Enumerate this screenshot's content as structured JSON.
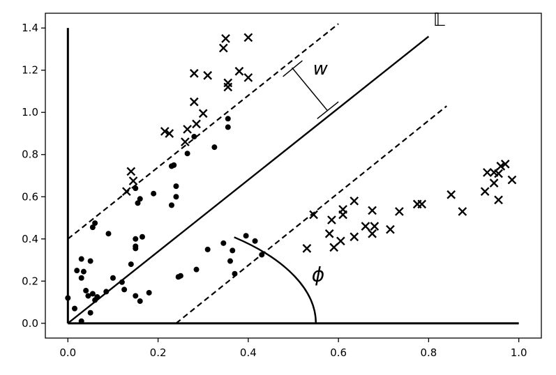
{
  "chart_data": {
    "type": "scatter",
    "xlim": [
      -0.05,
      1.05
    ],
    "ylim": [
      -0.07,
      1.47
    ],
    "xticks": [
      0.0,
      0.2,
      0.4,
      0.6,
      0.8,
      1.0
    ],
    "xtick_labels": [
      "0.0",
      "0.2",
      "0.4",
      "0.6",
      "0.8",
      "1.0"
    ],
    "yticks": [
      0.0,
      0.2,
      0.4,
      0.6,
      0.8,
      1.0,
      1.2,
      1.4
    ],
    "ytick_labels": [
      "0.0",
      "0.2",
      "0.4",
      "0.6",
      "0.8",
      "1.0",
      "1.2",
      "1.4"
    ],
    "grid": false,
    "series": [
      {
        "marker": "x",
        "color": "#000000",
        "points": [
          [
            0.35,
            1.35
          ],
          [
            0.4,
            1.355
          ],
          [
            0.345,
            1.305
          ],
          [
            0.28,
            1.185
          ],
          [
            0.31,
            1.175
          ],
          [
            0.38,
            1.195
          ],
          [
            0.4,
            1.165
          ],
          [
            0.355,
            1.14
          ],
          [
            0.355,
            1.12
          ],
          [
            0.28,
            1.05
          ],
          [
            0.3,
            0.995
          ],
          [
            0.285,
            0.945
          ],
          [
            0.265,
            0.92
          ],
          [
            0.215,
            0.91
          ],
          [
            0.225,
            0.9
          ],
          [
            0.26,
            0.86
          ],
          [
            0.14,
            0.72
          ],
          [
            0.145,
            0.675
          ],
          [
            0.13,
            0.625
          ],
          [
            0.97,
            0.755
          ],
          [
            0.96,
            0.745
          ],
          [
            0.93,
            0.715
          ],
          [
            0.945,
            0.715
          ],
          [
            0.955,
            0.71
          ],
          [
            0.945,
            0.665
          ],
          [
            0.925,
            0.625
          ],
          [
            0.985,
            0.68
          ],
          [
            0.85,
            0.61
          ],
          [
            0.955,
            0.585
          ],
          [
            0.635,
            0.58
          ],
          [
            0.775,
            0.565
          ],
          [
            0.785,
            0.565
          ],
          [
            0.61,
            0.54
          ],
          [
            0.675,
            0.535
          ],
          [
            0.735,
            0.53
          ],
          [
            0.875,
            0.53
          ],
          [
            0.545,
            0.515
          ],
          [
            0.61,
            0.515
          ],
          [
            0.585,
            0.49
          ],
          [
            0.66,
            0.46
          ],
          [
            0.68,
            0.46
          ],
          [
            0.715,
            0.445
          ],
          [
            0.675,
            0.425
          ],
          [
            0.58,
            0.425
          ],
          [
            0.635,
            0.41
          ],
          [
            0.605,
            0.39
          ],
          [
            0.59,
            0.36
          ],
          [
            0.53,
            0.355
          ]
        ]
      },
      {
        "marker": "o",
        "color": "#000000",
        "points": [
          [
            0.355,
            0.97
          ],
          [
            0.355,
            0.93
          ],
          [
            0.28,
            0.885
          ],
          [
            0.325,
            0.835
          ],
          [
            0.265,
            0.805
          ],
          [
            0.235,
            0.75
          ],
          [
            0.23,
            0.745
          ],
          [
            0.24,
            0.65
          ],
          [
            0.15,
            0.64
          ],
          [
            0.19,
            0.615
          ],
          [
            0.24,
            0.6
          ],
          [
            0.16,
            0.59
          ],
          [
            0.155,
            0.57
          ],
          [
            0.23,
            0.56
          ],
          [
            0.06,
            0.475
          ],
          [
            0.055,
            0.455
          ],
          [
            0.09,
            0.425
          ],
          [
            0.395,
            0.415
          ],
          [
            0.165,
            0.41
          ],
          [
            0.15,
            0.4
          ],
          [
            0.415,
            0.39
          ],
          [
            0.345,
            0.38
          ],
          [
            0.15,
            0.365
          ],
          [
            0.15,
            0.355
          ],
          [
            0.31,
            0.35
          ],
          [
            0.365,
            0.345
          ],
          [
            0.43,
            0.325
          ],
          [
            0.03,
            0.305
          ],
          [
            0.05,
            0.295
          ],
          [
            0.36,
            0.295
          ],
          [
            0.14,
            0.28
          ],
          [
            0.285,
            0.255
          ],
          [
            0.02,
            0.25
          ],
          [
            0.035,
            0.245
          ],
          [
            0.37,
            0.235
          ],
          [
            0.25,
            0.225
          ],
          [
            0.245,
            0.22
          ],
          [
            0.1,
            0.215
          ],
          [
            0.03,
            0.215
          ],
          [
            0.12,
            0.195
          ],
          [
            0.125,
            0.16
          ],
          [
            0.04,
            0.155
          ],
          [
            0.085,
            0.15
          ],
          [
            0.18,
            0.145
          ],
          [
            0.055,
            0.14
          ],
          [
            0.15,
            0.13
          ],
          [
            0.045,
            0.13
          ],
          [
            0.065,
            0.125
          ],
          [
            0.16,
            0.105
          ],
          [
            0.0,
            0.12
          ],
          [
            0.06,
            0.11
          ],
          [
            0.015,
            0.07
          ],
          [
            0.05,
            0.05
          ],
          [
            0.03,
            0.01
          ]
        ]
      }
    ],
    "geometry": {
      "axis_lines": [
        {
          "from": [
            0.0,
            0.0
          ],
          "to": [
            0.0,
            1.4
          ]
        },
        {
          "from": [
            0.0,
            0.0
          ],
          "to": [
            1.0,
            0.0
          ]
        }
      ],
      "separator": {
        "from": [
          0.0,
          0.0
        ],
        "to": [
          0.8,
          1.36
        ],
        "label": "𝕃"
      },
      "margins": [
        {
          "from": [
            0.0,
            0.4
          ],
          "to": [
            0.6,
            1.42
          ]
        },
        {
          "from": [
            0.24,
            0.0
          ],
          "to": [
            0.84,
            1.03
          ]
        }
      ],
      "width_marker": {
        "from": [
          0.497,
          1.212
        ],
        "to": [
          0.575,
          1.01
        ],
        "label": "w",
        "caps": [
          {
            "from": [
              0.477,
              1.17
            ],
            "to": [
              0.52,
              1.245
            ]
          },
          {
            "from": [
              0.553,
              0.97
            ],
            "to": [
              0.6,
              1.05
            ]
          }
        ]
      },
      "angle_arc": {
        "center": [
          0.0,
          0.0
        ],
        "radius": 0.55,
        "from_deg": 0,
        "to_deg": 47.9,
        "label": "ϕ"
      }
    }
  }
}
